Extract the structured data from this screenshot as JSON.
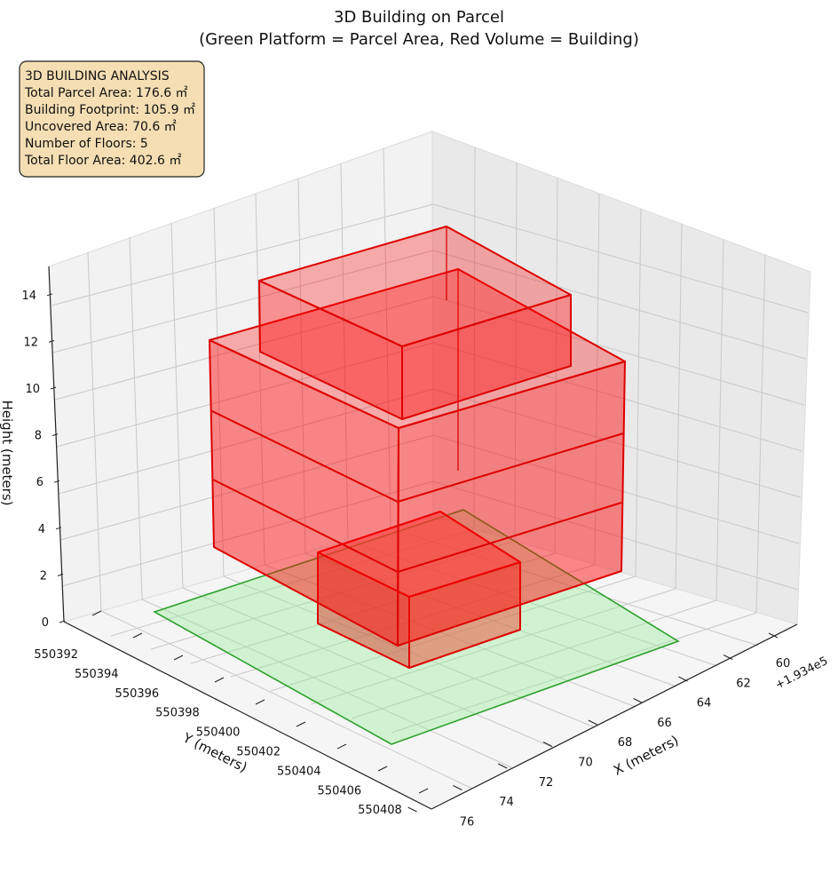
{
  "chart_data": {
    "type": "3d-box",
    "title": "3D Building on Parcel",
    "subtitle": "(Green Platform = Parcel Area, Red Volume = Building)",
    "xlabel": "X (meters)",
    "ylabel": "Y (meters)",
    "zlabel": "Height (meters)",
    "x_offset_label": "+1.934e5",
    "x_ticks": [
      "60",
      "62",
      "64",
      "66",
      "68",
      "70",
      "72",
      "74",
      "76"
    ],
    "y_ticks": [
      "550392",
      "550394",
      "550396",
      "550398",
      "550400",
      "550402",
      "550404",
      "550406",
      "550408"
    ],
    "z_ticks": [
      "0",
      "2",
      "4",
      "6",
      "8",
      "10",
      "12",
      "14"
    ],
    "grid": true,
    "info_box": {
      "title": "3D BUILDING ANALYSIS",
      "lines": [
        "Total Parcel Area: 176.6 ㎡",
        "Building Footprint: 105.9 ㎡",
        "Uncovered Area: 70.6 ㎡",
        "Number of Floors: 5",
        "Total Floor Area: 402.6 ㎡"
      ],
      "placement": "top-left"
    },
    "parcel": {
      "color": "#2ca02c",
      "fill": "#90ee90"
    },
    "building": {
      "color": "#dd0000",
      "fill": "#ff0000",
      "floors": 5
    }
  }
}
